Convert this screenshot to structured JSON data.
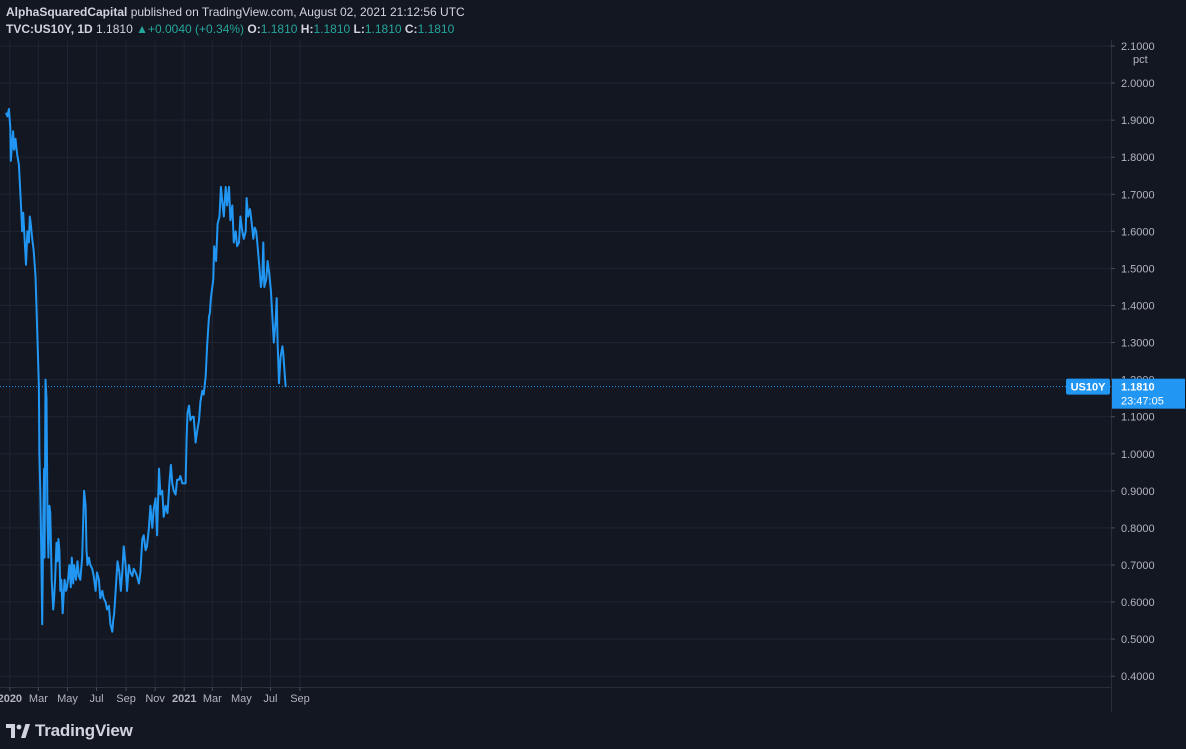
{
  "header": {
    "publisher": "AlphaSquaredCapital",
    "published_text": "published on TradingView.com, August 02, 2021 21:12:56 UTC",
    "symbol": "TVC:US10Y, 1D",
    "last": "1.1810",
    "change_arrow": "▲",
    "change": "+0.0040 (+0.34%)",
    "o_label": "O:",
    "o_value": "1.1810",
    "h_label": "H:",
    "h_value": "1.1810",
    "l_label": "L:",
    "l_value": "1.1810",
    "c_label": "C:",
    "c_value": "1.1810"
  },
  "price_tag": {
    "symbol": "US10Y",
    "price": "1.1810",
    "countdown": "23:47:05"
  },
  "footer": {
    "brand": "TradingView",
    "logo_icon": "tradingview-logo-icon"
  },
  "colors": {
    "background": "#131722",
    "line": "#2196f3",
    "grid": "#1f2433",
    "up": "#26a69a",
    "text": "#b2b5be"
  },
  "chart_data": {
    "type": "line",
    "unit": "pct",
    "ylim": [
      0.4,
      2.1
    ],
    "y_ticks": [
      "2.1000",
      "2.0000",
      "1.9000",
      "1.8000",
      "1.7000",
      "1.6000",
      "1.5000",
      "1.4000",
      "1.3000",
      "1.2000",
      "1.1000",
      "1.0000",
      "0.9000",
      "0.8000",
      "0.7000",
      "0.6000",
      "0.5000",
      "0.4000"
    ],
    "x_ticks": [
      {
        "label": "2020",
        "date": "2020-01-01",
        "bold": true
      },
      {
        "label": "Mar",
        "date": "2020-03-01"
      },
      {
        "label": "May",
        "date": "2020-05-01"
      },
      {
        "label": "Jul",
        "date": "2020-07-01"
      },
      {
        "label": "Sep",
        "date": "2020-09-01"
      },
      {
        "label": "Nov",
        "date": "2020-11-01"
      },
      {
        "label": "2021",
        "date": "2021-01-01",
        "bold": true
      },
      {
        "label": "Mar",
        "date": "2021-03-01"
      },
      {
        "label": "May",
        "date": "2021-05-01"
      },
      {
        "label": "Jul",
        "date": "2021-07-01"
      },
      {
        "label": "Sep",
        "date": "2021-09-01"
      }
    ],
    "x_range": [
      "2019-12-24",
      "2021-10-14"
    ],
    "last_value": 1.181,
    "grid": true,
    "series": [
      {
        "points": [
          [
            "2019-12-24",
            1.92
          ],
          [
            "2019-12-27",
            1.91
          ],
          [
            "2019-12-30",
            1.93
          ],
          [
            "2020-01-02",
            1.88
          ],
          [
            "2020-01-03",
            1.79
          ],
          [
            "2020-01-08",
            1.87
          ],
          [
            "2020-01-10",
            1.82
          ],
          [
            "2020-01-13",
            1.85
          ],
          [
            "2020-01-16",
            1.81
          ],
          [
            "2020-01-20",
            1.78
          ],
          [
            "2020-01-24",
            1.68
          ],
          [
            "2020-01-27",
            1.6
          ],
          [
            "2020-01-29",
            1.65
          ],
          [
            "2020-02-01",
            1.58
          ],
          [
            "2020-02-04",
            1.51
          ],
          [
            "2020-02-07",
            1.6
          ],
          [
            "2020-02-10",
            1.57
          ],
          [
            "2020-02-12",
            1.64
          ],
          [
            "2020-02-14",
            1.62
          ],
          [
            "2020-02-17",
            1.58
          ],
          [
            "2020-02-20",
            1.55
          ],
          [
            "2020-02-24",
            1.48
          ],
          [
            "2020-02-27",
            1.35
          ],
          [
            "2020-03-02",
            1.18
          ],
          [
            "2020-03-03",
            1.0
          ],
          [
            "2020-03-05",
            0.9
          ],
          [
            "2020-03-07",
            0.73
          ],
          [
            "2020-03-09",
            0.54
          ],
          [
            "2020-03-11",
            0.8
          ],
          [
            "2020-03-13",
            0.96
          ],
          [
            "2020-03-14",
            0.72
          ],
          [
            "2020-03-16",
            1.2
          ],
          [
            "2020-03-18",
            1.15
          ],
          [
            "2020-03-20",
            0.82
          ],
          [
            "2020-03-22",
            0.72
          ],
          [
            "2020-03-24",
            0.86
          ],
          [
            "2020-03-26",
            0.84
          ],
          [
            "2020-03-29",
            0.66
          ],
          [
            "2020-04-01",
            0.58
          ],
          [
            "2020-04-03",
            0.61
          ],
          [
            "2020-04-05",
            0.66
          ],
          [
            "2020-04-08",
            0.76
          ],
          [
            "2020-04-10",
            0.71
          ],
          [
            "2020-04-12",
            0.77
          ],
          [
            "2020-04-14",
            0.74
          ],
          [
            "2020-04-16",
            0.63
          ],
          [
            "2020-04-18",
            0.66
          ],
          [
            "2020-04-21",
            0.57
          ],
          [
            "2020-04-23",
            0.62
          ],
          [
            "2020-04-25",
            0.66
          ],
          [
            "2020-04-28",
            0.63
          ],
          [
            "2020-04-30",
            0.64
          ],
          [
            "2020-05-03",
            0.67
          ],
          [
            "2020-05-05",
            0.7
          ],
          [
            "2020-05-08",
            0.64
          ],
          [
            "2020-05-10",
            0.72
          ],
          [
            "2020-05-13",
            0.65
          ],
          [
            "2020-05-15",
            0.7
          ],
          [
            "2020-05-19",
            0.66
          ],
          [
            "2020-05-22",
            0.71
          ],
          [
            "2020-05-25",
            0.67
          ],
          [
            "2020-05-28",
            0.66
          ],
          [
            "2020-06-01",
            0.72
          ],
          [
            "2020-06-03",
            0.82
          ],
          [
            "2020-06-05",
            0.9
          ],
          [
            "2020-06-08",
            0.86
          ],
          [
            "2020-06-10",
            0.74
          ],
          [
            "2020-06-12",
            0.7
          ],
          [
            "2020-06-15",
            0.72
          ],
          [
            "2020-06-18",
            0.7
          ],
          [
            "2020-06-22",
            0.69
          ],
          [
            "2020-06-25",
            0.67
          ],
          [
            "2020-06-29",
            0.63
          ],
          [
            "2020-07-02",
            0.68
          ],
          [
            "2020-07-06",
            0.66
          ],
          [
            "2020-07-09",
            0.61
          ],
          [
            "2020-07-13",
            0.63
          ],
          [
            "2020-07-16",
            0.61
          ],
          [
            "2020-07-20",
            0.6
          ],
          [
            "2020-07-23",
            0.58
          ],
          [
            "2020-07-27",
            0.59
          ],
          [
            "2020-07-30",
            0.54
          ],
          [
            "2020-08-03",
            0.52
          ],
          [
            "2020-08-05",
            0.55
          ],
          [
            "2020-08-07",
            0.57
          ],
          [
            "2020-08-11",
            0.65
          ],
          [
            "2020-08-14",
            0.71
          ],
          [
            "2020-08-18",
            0.68
          ],
          [
            "2020-08-21",
            0.63
          ],
          [
            "2020-08-24",
            0.68
          ],
          [
            "2020-08-27",
            0.75
          ],
          [
            "2020-08-31",
            0.7
          ],
          [
            "2020-09-03",
            0.63
          ],
          [
            "2020-09-07",
            0.7
          ],
          [
            "2020-09-10",
            0.68
          ],
          [
            "2020-09-14",
            0.67
          ],
          [
            "2020-09-17",
            0.69
          ],
          [
            "2020-09-21",
            0.68
          ],
          [
            "2020-09-24",
            0.67
          ],
          [
            "2020-09-28",
            0.65
          ],
          [
            "2020-10-01",
            0.68
          ],
          [
            "2020-10-05",
            0.77
          ],
          [
            "2020-10-08",
            0.78
          ],
          [
            "2020-10-12",
            0.74
          ],
          [
            "2020-10-15",
            0.75
          ],
          [
            "2020-10-19",
            0.8
          ],
          [
            "2020-10-22",
            0.86
          ],
          [
            "2020-10-26",
            0.8
          ],
          [
            "2020-10-29",
            0.85
          ],
          [
            "2020-11-02",
            0.88
          ],
          [
            "2020-11-05",
            0.78
          ],
          [
            "2020-11-09",
            0.96
          ],
          [
            "2020-11-12",
            0.89
          ],
          [
            "2020-11-16",
            0.9
          ],
          [
            "2020-11-19",
            0.83
          ],
          [
            "2020-11-23",
            0.86
          ],
          [
            "2020-11-27",
            0.84
          ],
          [
            "2020-12-01",
            0.92
          ],
          [
            "2020-12-04",
            0.97
          ],
          [
            "2020-12-07",
            0.92
          ],
          [
            "2020-12-10",
            0.9
          ],
          [
            "2020-12-14",
            0.89
          ],
          [
            "2020-12-17",
            0.93
          ],
          [
            "2020-12-21",
            0.93
          ],
          [
            "2020-12-24",
            0.94
          ],
          [
            "2020-12-28",
            0.92
          ],
          [
            "2020-12-31",
            0.92
          ],
          [
            "2021-01-04",
            0.92
          ],
          [
            "2021-01-06",
            1.04
          ],
          [
            "2021-01-08",
            1.11
          ],
          [
            "2021-01-11",
            1.13
          ],
          [
            "2021-01-14",
            1.09
          ],
          [
            "2021-01-18",
            1.1
          ],
          [
            "2021-01-21",
            1.1
          ],
          [
            "2021-01-25",
            1.03
          ],
          [
            "2021-01-28",
            1.06
          ],
          [
            "2021-02-01",
            1.09
          ],
          [
            "2021-02-04",
            1.14
          ],
          [
            "2021-02-08",
            1.17
          ],
          [
            "2021-02-11",
            1.16
          ],
          [
            "2021-02-15",
            1.21
          ],
          [
            "2021-02-18",
            1.29
          ],
          [
            "2021-02-22",
            1.37
          ],
          [
            "2021-02-24",
            1.38
          ],
          [
            "2021-02-26",
            1.42
          ],
          [
            "2021-03-01",
            1.45
          ],
          [
            "2021-03-03",
            1.47
          ],
          [
            "2021-03-05",
            1.56
          ],
          [
            "2021-03-09",
            1.52
          ],
          [
            "2021-03-12",
            1.62
          ],
          [
            "2021-03-16",
            1.64
          ],
          [
            "2021-03-19",
            1.72
          ],
          [
            "2021-03-22",
            1.68
          ],
          [
            "2021-03-25",
            1.64
          ],
          [
            "2021-03-29",
            1.72
          ],
          [
            "2021-04-01",
            1.67
          ],
          [
            "2021-04-05",
            1.72
          ],
          [
            "2021-04-08",
            1.63
          ],
          [
            "2021-04-12",
            1.67
          ],
          [
            "2021-04-15",
            1.57
          ],
          [
            "2021-04-19",
            1.6
          ],
          [
            "2021-04-22",
            1.56
          ],
          [
            "2021-04-26",
            1.57
          ],
          [
            "2021-04-29",
            1.64
          ],
          [
            "2021-05-03",
            1.6
          ],
          [
            "2021-05-06",
            1.58
          ],
          [
            "2021-05-10",
            1.6
          ],
          [
            "2021-05-12",
            1.69
          ],
          [
            "2021-05-15",
            1.64
          ],
          [
            "2021-05-19",
            1.66
          ],
          [
            "2021-05-22",
            1.63
          ],
          [
            "2021-05-26",
            1.58
          ],
          [
            "2021-05-29",
            1.61
          ],
          [
            "2021-06-01",
            1.6
          ],
          [
            "2021-06-04",
            1.56
          ],
          [
            "2021-06-08",
            1.5
          ],
          [
            "2021-06-11",
            1.45
          ],
          [
            "2021-06-14",
            1.48
          ],
          [
            "2021-06-16",
            1.57
          ],
          [
            "2021-06-18",
            1.45
          ],
          [
            "2021-06-22",
            1.47
          ],
          [
            "2021-06-25",
            1.52
          ],
          [
            "2021-06-29",
            1.48
          ],
          [
            "2021-07-02",
            1.44
          ],
          [
            "2021-07-06",
            1.35
          ],
          [
            "2021-07-08",
            1.3
          ],
          [
            "2021-07-12",
            1.36
          ],
          [
            "2021-07-14",
            1.42
          ],
          [
            "2021-07-16",
            1.3
          ],
          [
            "2021-07-19",
            1.19
          ],
          [
            "2021-07-22",
            1.26
          ],
          [
            "2021-07-26",
            1.29
          ],
          [
            "2021-07-28",
            1.27
          ],
          [
            "2021-07-30",
            1.23
          ],
          [
            "2021-08-02",
            1.18
          ]
        ]
      }
    ]
  }
}
